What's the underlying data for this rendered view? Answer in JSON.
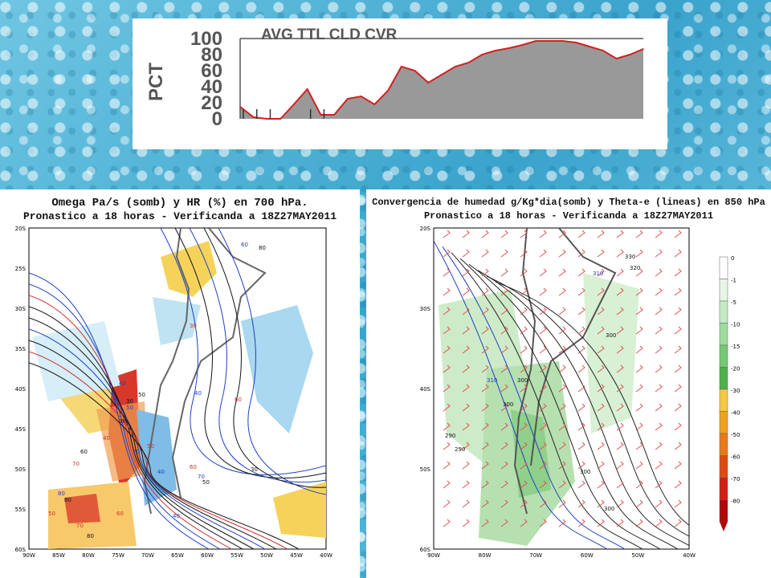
{
  "top_chart": {
    "title": "AVG TTL CLD CVR",
    "ylabel": "PCT",
    "yticks": [
      "100",
      "80",
      "60",
      "40",
      "20",
      "0"
    ]
  },
  "left_map": {
    "title_line1": "Omega Pa/s (somb) y HR (%) en 700 hPa.",
    "title_line2": "Pronastico a 18 horas - Verificanda a 18Z27MAY2011",
    "lat_labels": [
      "20S",
      "25S",
      "30S",
      "35S",
      "40S",
      "45S",
      "50S",
      "55S",
      "60S"
    ],
    "lon_labels": [
      "90W",
      "85W",
      "80W",
      "75W",
      "70W",
      "65W",
      "60W",
      "55W",
      "50W",
      "45W",
      "40W"
    ],
    "contour_labels": [
      "60",
      "80",
      "30",
      "40",
      "30",
      "60",
      "40",
      "50",
      "40",
      "50",
      "30",
      "50",
      "70",
      "60",
      "70",
      "80",
      "80",
      "70",
      "40",
      "30",
      "50",
      "40",
      "80",
      "60",
      "70",
      "50",
      "60"
    ]
  },
  "right_map": {
    "title_line1": "Convergencia de humedad g/Kg*dia(somb) y Theta-e (lineas) en 850 hPa",
    "title_line2": "Pronastico a 18 horas - Verificanda a 18Z27MAY2011",
    "lat_labels": [
      "20S",
      "30S",
      "40S",
      "50S",
      "60S"
    ],
    "lon_labels": [
      "90W",
      "80W",
      "70W",
      "60W",
      "50W",
      "40W"
    ],
    "contour_labels": [
      "330",
      "320",
      "310",
      "300",
      "310",
      "300",
      "290",
      "290",
      "300",
      "300",
      "300"
    ],
    "colorbar": [
      "0",
      "-1",
      "-5",
      "-10",
      "-15",
      "-20",
      "-30",
      "-40",
      "-50",
      "-60",
      "-70",
      "-80"
    ],
    "colorbar_colors": [
      "#ffffff",
      "#e6f5e6",
      "#c4ebc4",
      "#9edc9e",
      "#74c874",
      "#4cb04c",
      "#f5c842",
      "#f0a020",
      "#e87818",
      "#e04810",
      "#d02010",
      "#b00808"
    ]
  },
  "chart_data": {
    "type": "area",
    "title": "AVG TTL CLD CVR",
    "xlabel": "",
    "ylabel": "PCT",
    "ylim": [
      0,
      100
    ],
    "x": [
      0,
      1,
      2,
      3,
      4,
      5,
      6,
      7,
      8,
      9,
      10,
      11,
      12,
      13,
      14,
      15,
      16,
      17,
      18,
      19,
      20,
      21,
      22,
      23,
      24,
      25,
      26,
      27,
      28,
      29,
      30
    ],
    "values": [
      15,
      2,
      0,
      0,
      18,
      37,
      5,
      5,
      25,
      28,
      18,
      35,
      65,
      60,
      45,
      55,
      65,
      70,
      80,
      85,
      88,
      92,
      97,
      97,
      97,
      95,
      90,
      85,
      75,
      80,
      87
    ],
    "grid": false
  }
}
